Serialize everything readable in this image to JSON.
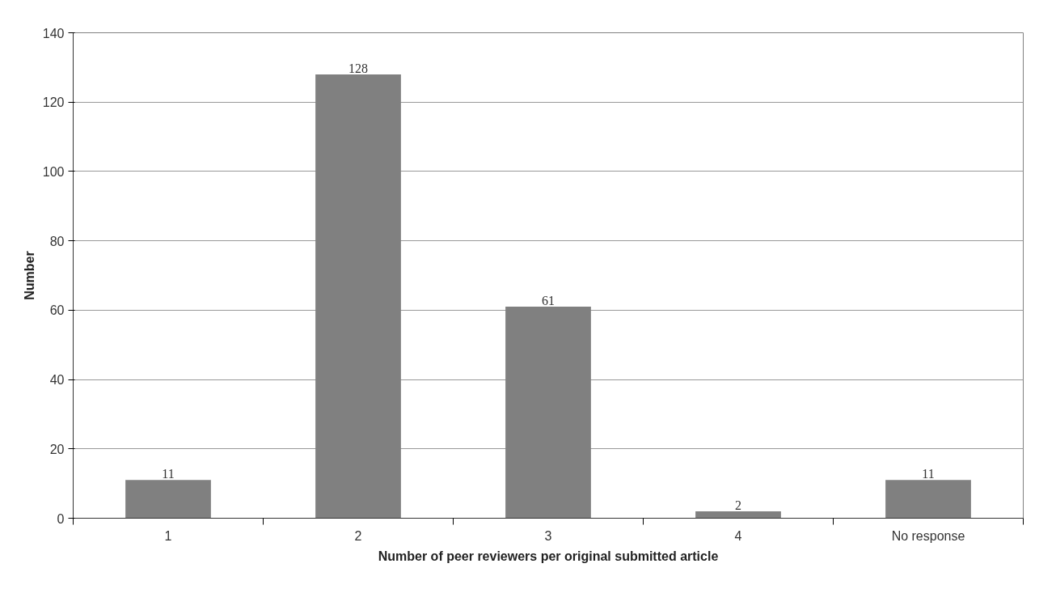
{
  "chart_data": {
    "type": "bar",
    "xlabel": "Number of peer reviewers per original submitted article",
    "ylabel": "Number",
    "categories": [
      "1",
      "2",
      "3",
      "4",
      "No response"
    ],
    "values": [
      11,
      128,
      61,
      2,
      11
    ],
    "color": "#808080",
    "ylim": [
      0,
      140
    ],
    "yticks": [
      0,
      20,
      40,
      60,
      80,
      100,
      120,
      140
    ],
    "grid": "y",
    "data_labels": true
  }
}
